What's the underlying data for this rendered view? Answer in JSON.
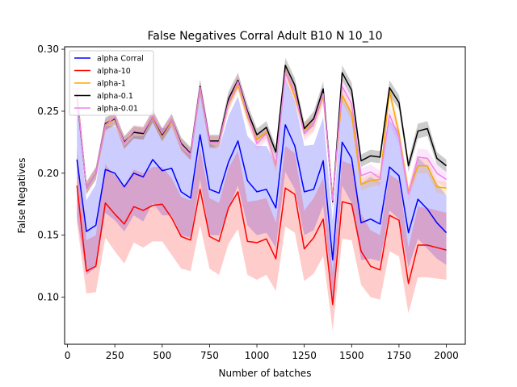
{
  "chart_data": {
    "type": "line",
    "title": "False Negatives Corral Adult B10 N 10_10",
    "xlabel": "Number of batches",
    "ylabel": "False Negatives",
    "xlim": [
      -15,
      2100
    ],
    "ylim": [
      0.062,
      0.302
    ],
    "xticks": [
      0,
      250,
      500,
      750,
      1000,
      1250,
      1500,
      1750,
      2000
    ],
    "yticks": [
      0.1,
      0.15,
      0.2,
      0.25,
      0.3
    ],
    "xtick_labels": [
      "0",
      "250",
      "500",
      "750",
      "1000",
      "1250",
      "1500",
      "1750",
      "2000"
    ],
    "ytick_labels": [
      "0.10",
      "0.15",
      "0.20",
      "0.25",
      "0.30"
    ],
    "grid": false,
    "legend_position": "top-left",
    "x": [
      50,
      100,
      150,
      200,
      250,
      300,
      350,
      400,
      450,
      500,
      550,
      600,
      650,
      700,
      750,
      800,
      850,
      900,
      950,
      1000,
      1050,
      1100,
      1150,
      1200,
      1250,
      1300,
      1350,
      1400,
      1450,
      1500,
      1550,
      1600,
      1650,
      1700,
      1750,
      1800,
      1850,
      1900,
      1950,
      2000
    ],
    "series": [
      {
        "name": "alpha Corral",
        "color": "#0000ff",
        "values": [
          0.211,
          0.153,
          0.158,
          0.203,
          0.2,
          0.189,
          0.2,
          0.197,
          0.211,
          0.202,
          0.204,
          0.185,
          0.18,
          0.231,
          0.187,
          0.184,
          0.209,
          0.226,
          0.194,
          0.185,
          0.187,
          0.172,
          0.239,
          0.222,
          0.185,
          0.187,
          0.21,
          0.13,
          0.225,
          0.212,
          0.16,
          0.163,
          0.159,
          0.205,
          0.198,
          0.152,
          0.179,
          0.171,
          0.16,
          0.152
        ],
        "band_lower": [
          0.165,
          0.118,
          0.124,
          0.168,
          0.162,
          0.153,
          0.166,
          0.161,
          0.176,
          0.166,
          0.166,
          0.15,
          0.148,
          0.195,
          0.15,
          0.15,
          0.171,
          0.19,
          0.158,
          0.15,
          0.152,
          0.14,
          0.201,
          0.187,
          0.15,
          0.154,
          0.174,
          0.099,
          0.19,
          0.176,
          0.13,
          0.131,
          0.129,
          0.17,
          0.163,
          0.124,
          0.147,
          0.139,
          0.131,
          0.126
        ],
        "band_upper": [
          0.262,
          0.178,
          0.191,
          0.238,
          0.238,
          0.222,
          0.23,
          0.23,
          0.244,
          0.236,
          0.238,
          0.22,
          0.214,
          0.266,
          0.224,
          0.22,
          0.246,
          0.262,
          0.23,
          0.222,
          0.222,
          0.208,
          0.276,
          0.258,
          0.222,
          0.223,
          0.245,
          0.162,
          0.262,
          0.248,
          0.192,
          0.197,
          0.193,
          0.243,
          0.234,
          0.181,
          0.213,
          0.205,
          0.192,
          0.182
        ]
      },
      {
        "name": "alpha-10",
        "color": "#ff0000",
        "values": [
          0.19,
          0.121,
          0.125,
          0.176,
          0.167,
          0.159,
          0.173,
          0.17,
          0.174,
          0.175,
          0.164,
          0.149,
          0.146,
          0.187,
          0.149,
          0.145,
          0.172,
          0.185,
          0.145,
          0.144,
          0.147,
          0.131,
          0.188,
          0.183,
          0.139,
          0.148,
          0.163,
          0.094,
          0.177,
          0.175,
          0.137,
          0.125,
          0.122,
          0.166,
          0.162,
          0.111,
          0.142,
          0.142,
          0.14,
          0.138
        ],
        "band_lower": [
          0.16,
          0.103,
          0.104,
          0.148,
          0.137,
          0.127,
          0.144,
          0.14,
          0.145,
          0.145,
          0.134,
          0.123,
          0.121,
          0.158,
          0.123,
          0.118,
          0.143,
          0.155,
          0.118,
          0.114,
          0.118,
          0.105,
          0.157,
          0.152,
          0.113,
          0.119,
          0.133,
          0.073,
          0.147,
          0.146,
          0.11,
          0.1,
          0.098,
          0.137,
          0.133,
          0.087,
          0.116,
          0.116,
          0.115,
          0.114
        ],
        "band_upper": [
          0.22,
          0.146,
          0.15,
          0.207,
          0.198,
          0.19,
          0.203,
          0.2,
          0.205,
          0.205,
          0.196,
          0.181,
          0.178,
          0.22,
          0.18,
          0.176,
          0.204,
          0.218,
          0.177,
          0.178,
          0.18,
          0.16,
          0.222,
          0.216,
          0.17,
          0.18,
          0.196,
          0.12,
          0.21,
          0.207,
          0.167,
          0.154,
          0.15,
          0.199,
          0.194,
          0.14,
          0.173,
          0.172,
          0.17,
          0.168
        ]
      },
      {
        "name": "alpha-1",
        "color": "#ffa500",
        "values": [
          0.265,
          0.188,
          0.2,
          0.238,
          0.244,
          0.224,
          0.233,
          0.232,
          0.245,
          0.23,
          0.242,
          0.223,
          0.215,
          0.268,
          0.225,
          0.225,
          0.256,
          0.272,
          0.246,
          0.227,
          0.233,
          0.206,
          0.282,
          0.262,
          0.235,
          0.24,
          0.262,
          0.18,
          0.263,
          0.248,
          0.191,
          0.194,
          0.195,
          0.266,
          0.232,
          0.185,
          0.206,
          0.206,
          0.189,
          0.188
        ],
        "band_lower": [
          0.257,
          0.183,
          0.195,
          0.233,
          0.239,
          0.219,
          0.228,
          0.227,
          0.24,
          0.225,
          0.237,
          0.218,
          0.21,
          0.262,
          0.22,
          0.22,
          0.25,
          0.266,
          0.24,
          0.222,
          0.228,
          0.201,
          0.276,
          0.256,
          0.229,
          0.234,
          0.256,
          0.175,
          0.257,
          0.242,
          0.186,
          0.189,
          0.19,
          0.26,
          0.226,
          0.18,
          0.2,
          0.2,
          0.184,
          0.183
        ],
        "band_upper": [
          0.273,
          0.193,
          0.205,
          0.243,
          0.249,
          0.229,
          0.238,
          0.237,
          0.25,
          0.235,
          0.247,
          0.228,
          0.22,
          0.274,
          0.23,
          0.23,
          0.262,
          0.278,
          0.252,
          0.232,
          0.238,
          0.211,
          0.288,
          0.268,
          0.241,
          0.246,
          0.268,
          0.185,
          0.269,
          0.254,
          0.196,
          0.199,
          0.2,
          0.272,
          0.238,
          0.19,
          0.212,
          0.212,
          0.194,
          0.193
        ]
      },
      {
        "name": "alpha-0.1",
        "color": "#000000",
        "values": [
          0.263,
          0.188,
          0.2,
          0.24,
          0.244,
          0.225,
          0.233,
          0.232,
          0.246,
          0.231,
          0.243,
          0.224,
          0.216,
          0.27,
          0.226,
          0.226,
          0.26,
          0.275,
          0.25,
          0.231,
          0.237,
          0.217,
          0.287,
          0.271,
          0.236,
          0.244,
          0.268,
          0.177,
          0.281,
          0.267,
          0.21,
          0.214,
          0.213,
          0.269,
          0.257,
          0.206,
          0.234,
          0.236,
          0.212,
          0.206
        ],
        "band_lower": [
          0.256,
          0.183,
          0.195,
          0.235,
          0.239,
          0.22,
          0.228,
          0.227,
          0.241,
          0.226,
          0.238,
          0.219,
          0.211,
          0.264,
          0.221,
          0.221,
          0.254,
          0.269,
          0.244,
          0.226,
          0.232,
          0.212,
          0.281,
          0.265,
          0.231,
          0.238,
          0.262,
          0.172,
          0.275,
          0.261,
          0.205,
          0.209,
          0.208,
          0.263,
          0.251,
          0.201,
          0.228,
          0.23,
          0.207,
          0.201
        ],
        "band_upper": [
          0.27,
          0.193,
          0.205,
          0.245,
          0.249,
          0.23,
          0.238,
          0.237,
          0.251,
          0.236,
          0.248,
          0.229,
          0.221,
          0.276,
          0.231,
          0.231,
          0.266,
          0.281,
          0.256,
          0.236,
          0.242,
          0.222,
          0.293,
          0.277,
          0.241,
          0.25,
          0.274,
          0.182,
          0.287,
          0.273,
          0.215,
          0.219,
          0.218,
          0.275,
          0.263,
          0.211,
          0.24,
          0.242,
          0.217,
          0.211
        ]
      },
      {
        "name": "alpha-0.01",
        "color": "#ee82ee",
        "values": [
          0.264,
          0.188,
          0.2,
          0.239,
          0.245,
          0.224,
          0.234,
          0.233,
          0.246,
          0.232,
          0.243,
          0.223,
          0.215,
          0.269,
          0.225,
          0.225,
          0.257,
          0.274,
          0.248,
          0.224,
          0.232,
          0.207,
          0.281,
          0.266,
          0.232,
          0.24,
          0.264,
          0.178,
          0.27,
          0.256,
          0.198,
          0.201,
          0.196,
          0.247,
          0.229,
          0.183,
          0.213,
          0.212,
          0.2,
          0.195
        ],
        "band_lower": [
          0.256,
          0.183,
          0.195,
          0.234,
          0.24,
          0.219,
          0.229,
          0.228,
          0.241,
          0.227,
          0.238,
          0.218,
          0.21,
          0.263,
          0.22,
          0.22,
          0.251,
          0.268,
          0.242,
          0.218,
          0.226,
          0.201,
          0.274,
          0.259,
          0.226,
          0.233,
          0.257,
          0.172,
          0.263,
          0.249,
          0.192,
          0.195,
          0.19,
          0.24,
          0.222,
          0.177,
          0.206,
          0.205,
          0.193,
          0.188
        ],
        "band_upper": [
          0.272,
          0.193,
          0.205,
          0.244,
          0.25,
          0.229,
          0.239,
          0.238,
          0.251,
          0.237,
          0.248,
          0.228,
          0.22,
          0.275,
          0.23,
          0.23,
          0.263,
          0.28,
          0.254,
          0.23,
          0.238,
          0.213,
          0.288,
          0.273,
          0.238,
          0.247,
          0.271,
          0.184,
          0.277,
          0.263,
          0.204,
          0.207,
          0.202,
          0.254,
          0.236,
          0.189,
          0.22,
          0.219,
          0.207,
          0.202
        ]
      }
    ]
  }
}
